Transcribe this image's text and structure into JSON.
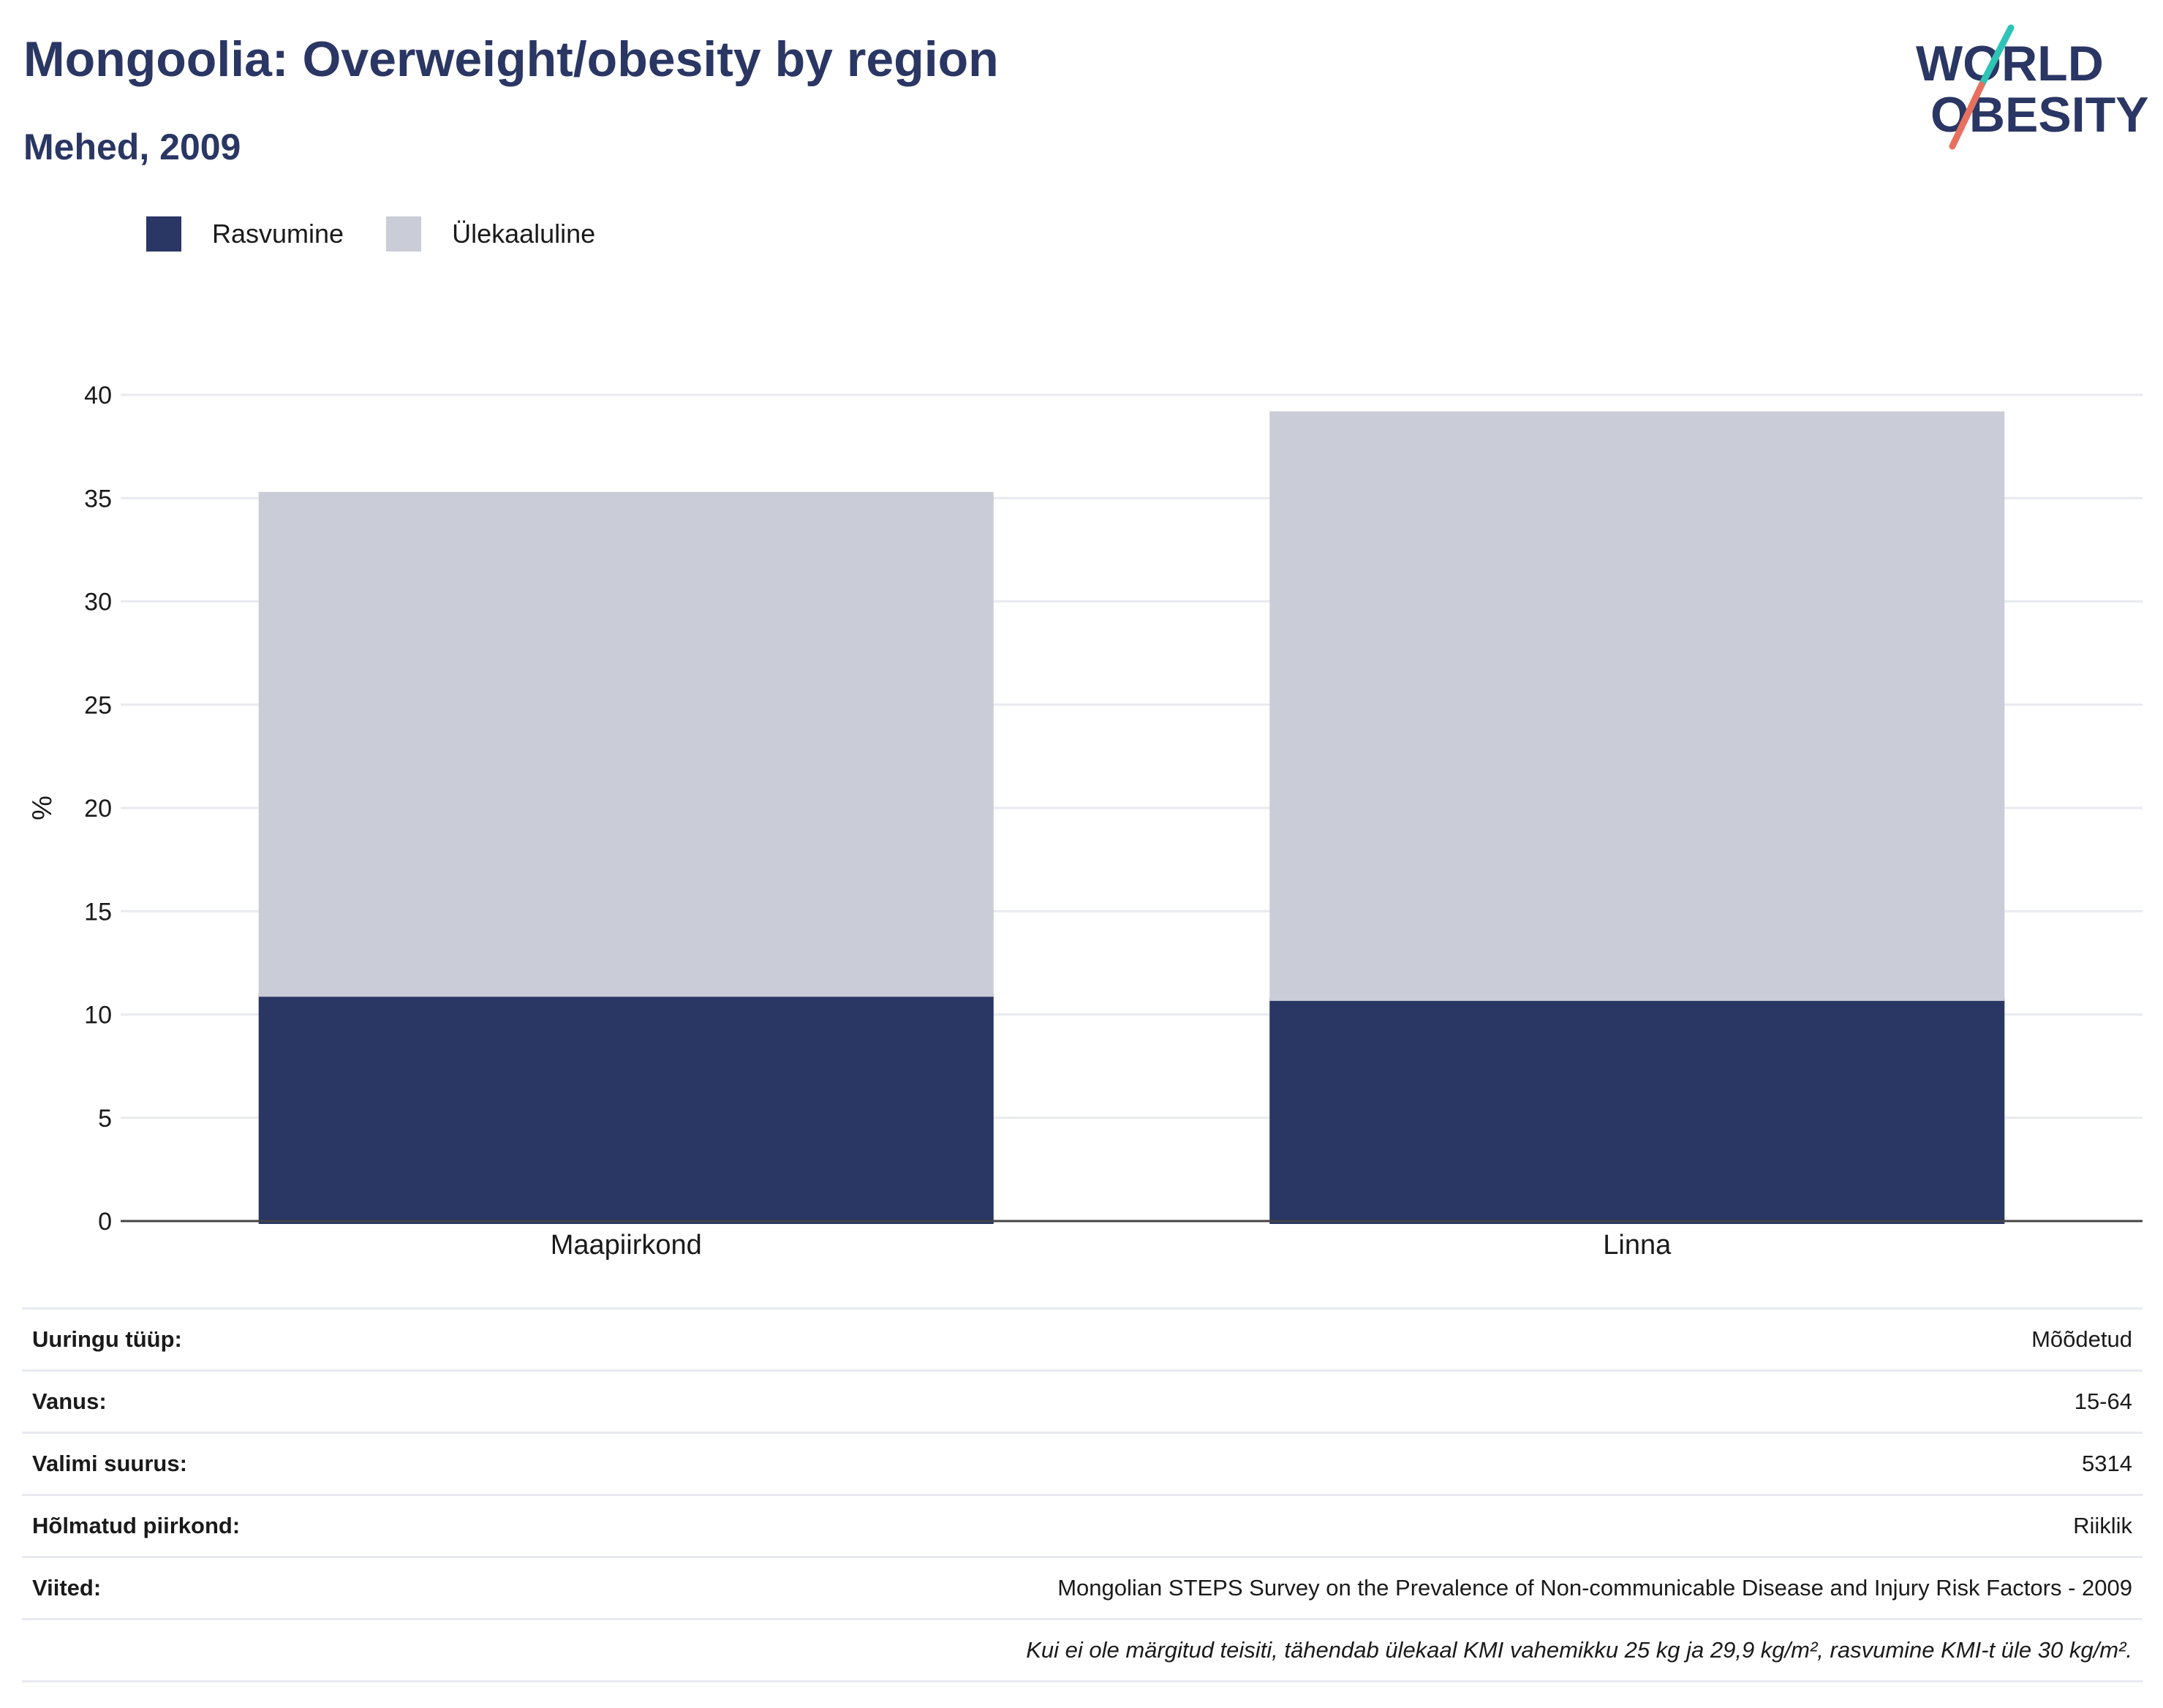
{
  "header": {
    "title": "Mongoolia: Overweight/obesity by region",
    "subtitle": "Mehed, 2009"
  },
  "logo": {
    "line1": "WORLD",
    "line2": "OBESITY",
    "colors": {
      "text": "#2a3663",
      "slash_top": "#2ec4b6",
      "slash_bottom": "#e8705f"
    }
  },
  "legend": [
    {
      "label": "Rasvumine",
      "color": "#2a3663"
    },
    {
      "label": "Ülekaaluline",
      "color": "#cacdd8"
    }
  ],
  "chart_data": {
    "type": "bar",
    "stacked": true,
    "categories": [
      "Maapiirkond",
      "Linna"
    ],
    "series": [
      {
        "name": "Rasvumine",
        "values": [
          11.0,
          10.8
        ],
        "color": "#2a3663"
      },
      {
        "name": "Ülekaaluline",
        "values": [
          24.3,
          28.4
        ],
        "color": "#cacdd8"
      }
    ],
    "ylabel": "%",
    "ylim": [
      0,
      40
    ],
    "yticks": [
      0,
      5,
      10,
      15,
      20,
      25,
      30,
      35,
      40
    ],
    "grid": true,
    "legend_position": "top-left"
  },
  "info": [
    {
      "key": "Uuringu tüüp:",
      "value": "Mõõdetud"
    },
    {
      "key": "Vanus:",
      "value": "15-64"
    },
    {
      "key": "Valimi suurus:",
      "value": "5314"
    },
    {
      "key": "Hõlmatud piirkond:",
      "value": "Riiklik"
    },
    {
      "key": "Viited:",
      "value": "Mongolian STEPS Survey on the Prevalence of Non-communicable Disease and Injury Risk Factors - 2009"
    },
    {
      "key": "",
      "value": "Kui ei ole märgitud teisiti, tähendab ülekaal KMI vahemikku 25 kg ja 29,9 kg/m², rasvumine KMI-t üle 30 kg/m²."
    }
  ]
}
